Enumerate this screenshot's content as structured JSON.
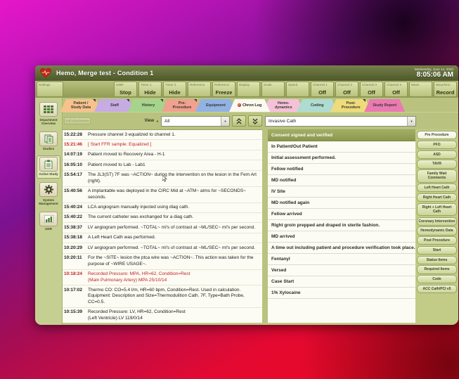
{
  "colors": {
    "titlebar": "#5a6434",
    "panel_olive": "#b9c37f",
    "selected_row": "#93a158",
    "alert_red": "#c22123"
  },
  "window": {
    "title": "Hemo, Merge test - Condition 1",
    "date": "Wednesday, June 14, 2023",
    "time": "8:05:06 AM"
  },
  "toolbar": {
    "settings_label": "Settings",
    "buttons": [
      {
        "label": "NIBP",
        "value": "Stop"
      },
      {
        "label": "Timer 1",
        "value": "Hide"
      },
      {
        "label": "Timer 2",
        "value": "Hide"
      },
      {
        "label": "Reference",
        "value": ""
      },
      {
        "label": "Reference",
        "value": "Freeze"
      },
      {
        "label": "Display",
        "value": ""
      },
      {
        "label": "Scale",
        "value": ""
      },
      {
        "label": "Speed",
        "value": ""
      },
      {
        "label": "Channel 1",
        "value": "Off"
      },
      {
        "label": "Channel 2",
        "value": "Off"
      },
      {
        "label": "Channel 3",
        "value": "Off"
      },
      {
        "label": "Channel 4",
        "value": "Off"
      },
      {
        "label": "Mean",
        "value": ""
      },
      {
        "label": "Waveform",
        "value": "Record"
      }
    ]
  },
  "tabs": [
    {
      "line1": "Patient /",
      "line2": "Study Data",
      "color": "#f7c28e",
      "marker": true
    },
    {
      "line1": "Staff",
      "line2": "",
      "color": "#c7abe3",
      "marker": true
    },
    {
      "line1": "History",
      "line2": "",
      "color": "#a6d48d",
      "marker": true
    },
    {
      "line1": "Pre-",
      "line2": "Procedure",
      "color": "#f0a18f",
      "marker": true
    },
    {
      "line1": "Equipment",
      "line2": "",
      "color": "#92b2e4"
    },
    {
      "line1": "Chron Log",
      "line2": "",
      "color": "#fafaf0",
      "active": true,
      "dot": true
    },
    {
      "line1": "Hemo-",
      "line2": "dynamics",
      "color": "#f5c1d9"
    },
    {
      "line1": "Coding",
      "line2": "",
      "color": "#aedbd2"
    },
    {
      "line1": "Post-",
      "line2": "Procedure",
      "color": "#efdb7a",
      "marker": true
    },
    {
      "line1": "Study Report",
      "line2": "",
      "color": "#ea7ab2"
    }
  ],
  "sidebar": {
    "items": [
      {
        "label": "Department Overview",
        "icon": "grid"
      },
      {
        "label": "Studies",
        "icon": "studies"
      },
      {
        "label": "Active Study",
        "icon": "clipboard",
        "active": true
      },
      {
        "label": "System Management",
        "icon": "gear"
      },
      {
        "label": "UDR",
        "icon": "chart"
      }
    ]
  },
  "controls": {
    "full_disclosure": "Full Disclosure",
    "view_label": "View",
    "view_caret": "▼",
    "view_value": "All",
    "combo_caret": "▼",
    "quick_list_value": "Invasive Cath"
  },
  "log": {
    "entries": [
      {
        "time": "15:22:28",
        "text": "Pressure channel 3 equalized to channel 1."
      },
      {
        "time": "15:21:46",
        "text": "[ Start FFR sample: Equalized ]",
        "red": true
      },
      {
        "time": "14:07:19",
        "text": "Patient moved to Recovery Area - H-1"
      },
      {
        "time": "16:05:10",
        "text": "Patient moved to Lab - Lab1"
      },
      {
        "time": "15:54:17",
        "text": "The JL3(ST) 7F was ~ACTION~ during the intervention on the lesion in the Fem Art\n(right)."
      },
      {
        "time": "15:40:56",
        "text": "A implantable was deployed in the CIRC Mid at ~ATM~ atms for ~SECONDS~ seconds."
      },
      {
        "time": "15:40:24",
        "text": "LCA angiogram manually injected using diag cath."
      },
      {
        "time": "15:40:22",
        "text": "The current catheter was exchanged for a diag cath."
      },
      {
        "time": "15:38:37",
        "text": "LV angiogram performed. ~TOTAL~ ml's of contrast at ~ML/SEC~ ml's per second."
      },
      {
        "time": "15:38:18",
        "text": "A Left Heart Cath was performed."
      },
      {
        "time": "10:20:29",
        "text": "LV angiogram performed. ~TOTAL~ ml's of contrast at ~ML/SEC~ ml's per second."
      },
      {
        "time": "10:20:11",
        "text": "For the ~SITE~ lesion the ptca wire was ~ACTION~. This action was taken for the\npurpose of ~WIRE USAGE~."
      },
      {
        "time": "10:18:24",
        "text": "Recorded Pressure:  MPA, HR=62, Condition=Rest\n(Main Pulmonary Artery) MPA 25/10/14",
        "red": true
      },
      {
        "time": "10:17:02",
        "text": "Thermo CO: CO=5.4 l/m, HR=60 bpm, Condition=Rest. Used in calculation.\nEquipment: Description and Size=Thermodulition Cath. 7F, Type=Bath Probe, CC=0.5."
      },
      {
        "time": "10:15:39",
        "text": "Recorded Pressure:  LV, HR=62, Condition=Rest\n(Left Ventricle) LV 119/0/14"
      },
      {
        "time": "10:15:07",
        "text": "Patient returning to Recovery Area"
      }
    ]
  },
  "quick_entries": {
    "items": [
      {
        "label": "Consent signed and verified",
        "selected": true
      },
      {
        "label": "In Patient/Out Patient"
      },
      {
        "label": "Initial assessment performed."
      },
      {
        "label": "Fellow notified"
      },
      {
        "label": "MD notified"
      },
      {
        "label": "IV Site"
      },
      {
        "label": "MD notified again"
      },
      {
        "label": "Fellow arrived"
      },
      {
        "label": "Right groin prepped and draped in sterile fashion."
      },
      {
        "label": "MD arrived"
      },
      {
        "label": "A time out including patient and procedure verification took place..."
      },
      {
        "label": "Fentanyl"
      },
      {
        "label": "Versed"
      },
      {
        "label": "Case Start"
      },
      {
        "label": "1% Xylocaine"
      }
    ]
  },
  "panel_buttons": [
    {
      "label": "Pre Procedure",
      "active": true
    },
    {
      "label": "PFO"
    },
    {
      "label": "ASD"
    },
    {
      "label": "TAVR"
    },
    {
      "label": "Family Wait Comments"
    },
    {
      "label": "Left Heart Cath"
    },
    {
      "label": "Right Heart Cath"
    },
    {
      "label": "Right + Left Heart Cath"
    },
    {
      "label": "Coronary Intervention"
    },
    {
      "label": "Hemodynamic Data"
    },
    {
      "label": "Post Procedure"
    },
    {
      "label": "Start"
    },
    {
      "label": "Status Items"
    },
    {
      "label": "Required Items"
    },
    {
      "label": "Code"
    },
    {
      "label": "ACC Cath/PCI v5"
    }
  ]
}
